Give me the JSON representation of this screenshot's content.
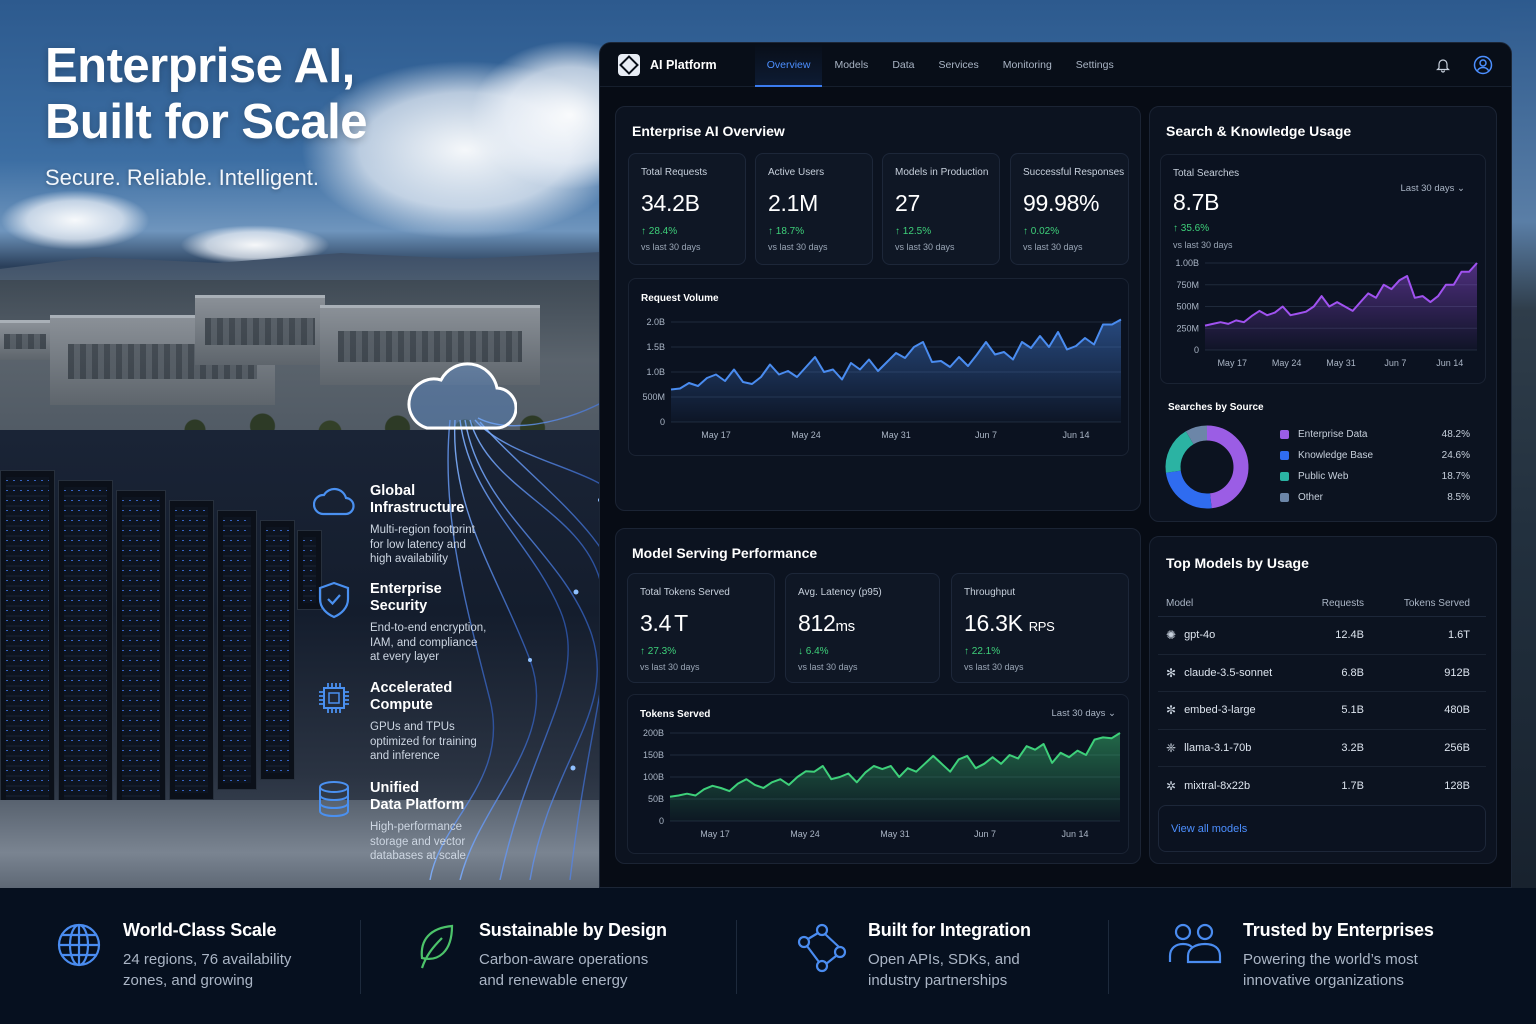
{
  "hero": {
    "title_line1": "Enterprise AI,",
    "title_line2": "Built for Scale",
    "tagline": "Secure. Reliable. Intelligent.",
    "features": [
      {
        "icon": "cloud-icon",
        "title_line1": "Global",
        "title_line2": "Infrastructure",
        "desc": [
          "Multi-region footprint",
          "for low latency and",
          "high availability"
        ]
      },
      {
        "icon": "shield-check-icon",
        "title_line1": "Enterprise",
        "title_line2": "Security",
        "desc": [
          "End-to-end encryption,",
          "IAM, and compliance",
          "at every layer"
        ]
      },
      {
        "icon": "chip-icon",
        "title_line1": "Accelerated",
        "title_line2": "Compute",
        "desc": [
          "GPUs and TPUs",
          "optimized for training",
          "and inference"
        ]
      },
      {
        "icon": "database-icon",
        "title_line1": "Unified",
        "title_line2": "Data Platform",
        "desc": [
          "High-performance",
          "storage and vector",
          "databases at scale"
        ]
      }
    ]
  },
  "nav": {
    "app_name": "AI Platform",
    "items": [
      {
        "label": "Overview",
        "active": true
      },
      {
        "label": "Models",
        "active": false
      },
      {
        "label": "Data",
        "active": false
      },
      {
        "label": "Services",
        "active": false
      },
      {
        "label": "Monitoring",
        "active": false
      },
      {
        "label": "Settings",
        "active": false
      }
    ],
    "icons": [
      "bell-icon",
      "user-icon"
    ]
  },
  "overview": {
    "title": "Enterprise AI Overview",
    "kpis": [
      {
        "label": "Total Requests",
        "value": "34.2B",
        "change": "28.4%",
        "direction": "up",
        "sub": "vs last 30 days"
      },
      {
        "label": "Active Users",
        "value": "2.1M",
        "change": "18.7%",
        "direction": "up",
        "sub": "vs last 30 days"
      },
      {
        "label": "Models in Production",
        "value": "27",
        "change": "12.5%",
        "direction": "up",
        "sub": "vs last 30 days"
      },
      {
        "label": "Successful Responses",
        "value": "99.98%",
        "change": "0.02%",
        "direction": "up",
        "sub": "vs last 30 days"
      }
    ],
    "chart_title": "Request Volume"
  },
  "search": {
    "title": "Search & Knowledge Usage",
    "kpi_label": "Total Searches",
    "kpi_value": "8.7B",
    "kpi_change": "35.6%",
    "kpi_sub": "vs last 30 days",
    "range": "Last 30 days",
    "source_title": "Searches by Source",
    "sources": [
      {
        "label": "Enterprise Data",
        "value": "48.2%",
        "color": "#9b5de5"
      },
      {
        "label": "Knowledge Base",
        "value": "24.6%",
        "color": "#2f6cf0"
      },
      {
        "label": "Public Web",
        "value": "18.7%",
        "color": "#2bb3a3"
      },
      {
        "label": "Other",
        "value": "8.5%",
        "color": "#6c86a8"
      }
    ]
  },
  "serving": {
    "title": "Model Serving Performance",
    "kpis": [
      {
        "label": "Total Tokens Served",
        "value": "3.4",
        "unit": "T",
        "change": "27.3%",
        "direction": "up",
        "sub": "vs last 30 days"
      },
      {
        "label": "Avg. Latency (p95)",
        "value": "812",
        "unit": "ms",
        "change": "6.4%",
        "direction": "down",
        "sub": "vs last 30 days"
      },
      {
        "label": "Throughput",
        "value": "16.3K",
        "unit": "RPS",
        "change": "22.1%",
        "direction": "up",
        "sub": "vs last 30 days"
      }
    ],
    "chart_title": "Tokens Served",
    "range": "Last 30 days"
  },
  "top_models": {
    "title": "Top Models by Usage",
    "headers": [
      "Model",
      "Requests",
      "Tokens Served"
    ],
    "rows": [
      {
        "model": "gpt-4o",
        "requests": "12.4B",
        "tokens": "1.6T"
      },
      {
        "model": "claude-3.5-sonnet",
        "requests": "6.8B",
        "tokens": "912B"
      },
      {
        "model": "embed-3-large",
        "requests": "5.1B",
        "tokens": "480B"
      },
      {
        "model": "llama-3.1-70b",
        "requests": "3.2B",
        "tokens": "256B"
      },
      {
        "model": "mixtral-8x22b",
        "requests": "1.7B",
        "tokens": "128B"
      }
    ],
    "view_all": "View all models"
  },
  "footer": [
    {
      "icon": "globe-icon",
      "title": "World-Class Scale",
      "desc": [
        "24 regions, 76 availability",
        "zones, and growing"
      ]
    },
    {
      "icon": "leaf-icon",
      "title": "Sustainable by Design",
      "desc": [
        "Carbon-aware operations",
        "and renewable energy"
      ]
    },
    {
      "icon": "network-icon",
      "title": "Built for Integration",
      "desc": [
        "Open APIs, SDKs, and",
        "industry partnerships"
      ]
    },
    {
      "icon": "users-icon",
      "title": "Trusted by Enterprises",
      "desc": [
        "Powering the world’s most",
        "innovative organizations"
      ]
    }
  ],
  "chart_data": [
    {
      "type": "area",
      "title": "Request Volume",
      "categories": [
        "May 17",
        "May 24",
        "May 31",
        "Jun 7",
        "Jun 14"
      ],
      "yticks": [
        "0",
        "500M",
        "1.0B",
        "1.5B",
        "2.0B"
      ],
      "ylim": [
        0,
        2.0
      ],
      "yunit": "B",
      "color": "#4a8cf0",
      "values": [
        0.65,
        0.67,
        0.78,
        0.72,
        0.88,
        0.95,
        0.82,
        1.05,
        0.8,
        0.76,
        0.9,
        1.15,
        0.95,
        1.02,
        0.9,
        1.1,
        1.3,
        1.0,
        1.05,
        0.85,
        1.18,
        1.05,
        1.25,
        1.02,
        1.2,
        1.38,
        1.28,
        1.5,
        1.6,
        1.2,
        1.22,
        1.1,
        1.3,
        1.12,
        1.35,
        1.6,
        1.35,
        1.4,
        1.25,
        1.6,
        1.48,
        1.72,
        1.5,
        1.8,
        1.45,
        1.52,
        1.68,
        1.55,
        1.95,
        1.95,
        2.05
      ]
    },
    {
      "type": "area",
      "title": "Total Searches",
      "categories": [
        "May 17",
        "May 24",
        "May 31",
        "Jun 7",
        "Jun 14"
      ],
      "yticks": [
        "0",
        "250M",
        "500M",
        "750M",
        "1.00B"
      ],
      "ylim": [
        0,
        1.0
      ],
      "yunit": "B",
      "color": "#a052f0",
      "values": [
        0.28,
        0.3,
        0.32,
        0.3,
        0.34,
        0.32,
        0.39,
        0.45,
        0.4,
        0.43,
        0.5,
        0.4,
        0.42,
        0.44,
        0.5,
        0.62,
        0.5,
        0.55,
        0.5,
        0.45,
        0.55,
        0.65,
        0.6,
        0.75,
        0.7,
        0.8,
        0.85,
        0.6,
        0.62,
        0.55,
        0.62,
        0.75,
        0.75,
        0.9,
        0.9,
        1.0
      ]
    },
    {
      "type": "pie",
      "title": "Searches by Source",
      "categories": [
        "Enterprise Data",
        "Knowledge Base",
        "Public Web",
        "Other"
      ],
      "values": [
        48.2,
        24.6,
        18.7,
        8.5
      ],
      "colors": [
        "#9b5de5",
        "#2f6cf0",
        "#2bb3a3",
        "#6c86a8"
      ]
    },
    {
      "type": "area",
      "title": "Tokens Served",
      "categories": [
        "May 17",
        "May 24",
        "May 31",
        "Jun 7",
        "Jun 14"
      ],
      "yticks": [
        "0",
        "50B",
        "100B",
        "150B",
        "200B"
      ],
      "ylim": [
        0,
        200
      ],
      "yunit": "B",
      "color": "#3ed07a",
      "values": [
        55,
        58,
        62,
        58,
        72,
        80,
        75,
        68,
        85,
        95,
        82,
        75,
        88,
        95,
        82,
        100,
        113,
        112,
        125,
        95,
        100,
        108,
        88,
        110,
        125,
        118,
        125,
        100,
        120,
        112,
        130,
        148,
        130,
        112,
        140,
        148,
        120,
        130,
        145,
        130,
        150,
        142,
        170,
        162,
        175,
        132,
        155,
        145,
        160,
        150,
        185,
        190,
        188,
        200
      ]
    }
  ]
}
